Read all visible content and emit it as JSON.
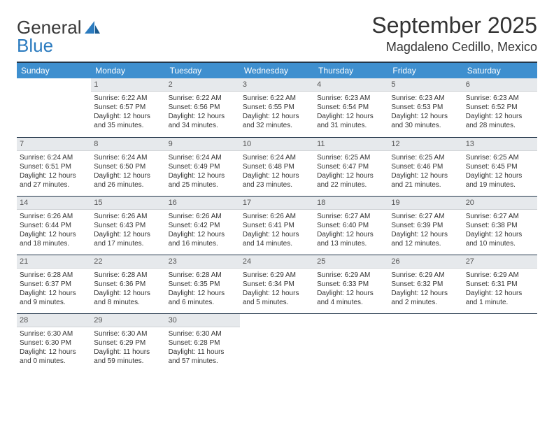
{
  "logo": {
    "text1": "General",
    "text2": "Blue"
  },
  "title": "September 2025",
  "location": "Magdaleno Cedillo, Mexico",
  "colors": {
    "header_bg": "#3e8fcf",
    "header_text": "#ffffff",
    "daynum_bg": "#e6e9ec",
    "border": "#22364a",
    "logo_blue": "#2b7bbf"
  },
  "weekdays": [
    "Sunday",
    "Monday",
    "Tuesday",
    "Wednesday",
    "Thursday",
    "Friday",
    "Saturday"
  ],
  "weeks": [
    [
      null,
      {
        "n": "1",
        "sr": "Sunrise: 6:22 AM",
        "ss": "Sunset: 6:57 PM",
        "dl": "Daylight: 12 hours and 35 minutes."
      },
      {
        "n": "2",
        "sr": "Sunrise: 6:22 AM",
        "ss": "Sunset: 6:56 PM",
        "dl": "Daylight: 12 hours and 34 minutes."
      },
      {
        "n": "3",
        "sr": "Sunrise: 6:22 AM",
        "ss": "Sunset: 6:55 PM",
        "dl": "Daylight: 12 hours and 32 minutes."
      },
      {
        "n": "4",
        "sr": "Sunrise: 6:23 AM",
        "ss": "Sunset: 6:54 PM",
        "dl": "Daylight: 12 hours and 31 minutes."
      },
      {
        "n": "5",
        "sr": "Sunrise: 6:23 AM",
        "ss": "Sunset: 6:53 PM",
        "dl": "Daylight: 12 hours and 30 minutes."
      },
      {
        "n": "6",
        "sr": "Sunrise: 6:23 AM",
        "ss": "Sunset: 6:52 PM",
        "dl": "Daylight: 12 hours and 28 minutes."
      }
    ],
    [
      {
        "n": "7",
        "sr": "Sunrise: 6:24 AM",
        "ss": "Sunset: 6:51 PM",
        "dl": "Daylight: 12 hours and 27 minutes."
      },
      {
        "n": "8",
        "sr": "Sunrise: 6:24 AM",
        "ss": "Sunset: 6:50 PM",
        "dl": "Daylight: 12 hours and 26 minutes."
      },
      {
        "n": "9",
        "sr": "Sunrise: 6:24 AM",
        "ss": "Sunset: 6:49 PM",
        "dl": "Daylight: 12 hours and 25 minutes."
      },
      {
        "n": "10",
        "sr": "Sunrise: 6:24 AM",
        "ss": "Sunset: 6:48 PM",
        "dl": "Daylight: 12 hours and 23 minutes."
      },
      {
        "n": "11",
        "sr": "Sunrise: 6:25 AM",
        "ss": "Sunset: 6:47 PM",
        "dl": "Daylight: 12 hours and 22 minutes."
      },
      {
        "n": "12",
        "sr": "Sunrise: 6:25 AM",
        "ss": "Sunset: 6:46 PM",
        "dl": "Daylight: 12 hours and 21 minutes."
      },
      {
        "n": "13",
        "sr": "Sunrise: 6:25 AM",
        "ss": "Sunset: 6:45 PM",
        "dl": "Daylight: 12 hours and 19 minutes."
      }
    ],
    [
      {
        "n": "14",
        "sr": "Sunrise: 6:26 AM",
        "ss": "Sunset: 6:44 PM",
        "dl": "Daylight: 12 hours and 18 minutes."
      },
      {
        "n": "15",
        "sr": "Sunrise: 6:26 AM",
        "ss": "Sunset: 6:43 PM",
        "dl": "Daylight: 12 hours and 17 minutes."
      },
      {
        "n": "16",
        "sr": "Sunrise: 6:26 AM",
        "ss": "Sunset: 6:42 PM",
        "dl": "Daylight: 12 hours and 16 minutes."
      },
      {
        "n": "17",
        "sr": "Sunrise: 6:26 AM",
        "ss": "Sunset: 6:41 PM",
        "dl": "Daylight: 12 hours and 14 minutes."
      },
      {
        "n": "18",
        "sr": "Sunrise: 6:27 AM",
        "ss": "Sunset: 6:40 PM",
        "dl": "Daylight: 12 hours and 13 minutes."
      },
      {
        "n": "19",
        "sr": "Sunrise: 6:27 AM",
        "ss": "Sunset: 6:39 PM",
        "dl": "Daylight: 12 hours and 12 minutes."
      },
      {
        "n": "20",
        "sr": "Sunrise: 6:27 AM",
        "ss": "Sunset: 6:38 PM",
        "dl": "Daylight: 12 hours and 10 minutes."
      }
    ],
    [
      {
        "n": "21",
        "sr": "Sunrise: 6:28 AM",
        "ss": "Sunset: 6:37 PM",
        "dl": "Daylight: 12 hours and 9 minutes."
      },
      {
        "n": "22",
        "sr": "Sunrise: 6:28 AM",
        "ss": "Sunset: 6:36 PM",
        "dl": "Daylight: 12 hours and 8 minutes."
      },
      {
        "n": "23",
        "sr": "Sunrise: 6:28 AM",
        "ss": "Sunset: 6:35 PM",
        "dl": "Daylight: 12 hours and 6 minutes."
      },
      {
        "n": "24",
        "sr": "Sunrise: 6:29 AM",
        "ss": "Sunset: 6:34 PM",
        "dl": "Daylight: 12 hours and 5 minutes."
      },
      {
        "n": "25",
        "sr": "Sunrise: 6:29 AM",
        "ss": "Sunset: 6:33 PM",
        "dl": "Daylight: 12 hours and 4 minutes."
      },
      {
        "n": "26",
        "sr": "Sunrise: 6:29 AM",
        "ss": "Sunset: 6:32 PM",
        "dl": "Daylight: 12 hours and 2 minutes."
      },
      {
        "n": "27",
        "sr": "Sunrise: 6:29 AM",
        "ss": "Sunset: 6:31 PM",
        "dl": "Daylight: 12 hours and 1 minute."
      }
    ],
    [
      {
        "n": "28",
        "sr": "Sunrise: 6:30 AM",
        "ss": "Sunset: 6:30 PM",
        "dl": "Daylight: 12 hours and 0 minutes."
      },
      {
        "n": "29",
        "sr": "Sunrise: 6:30 AM",
        "ss": "Sunset: 6:29 PM",
        "dl": "Daylight: 11 hours and 59 minutes."
      },
      {
        "n": "30",
        "sr": "Sunrise: 6:30 AM",
        "ss": "Sunset: 6:28 PM",
        "dl": "Daylight: 11 hours and 57 minutes."
      },
      null,
      null,
      null,
      null
    ]
  ]
}
